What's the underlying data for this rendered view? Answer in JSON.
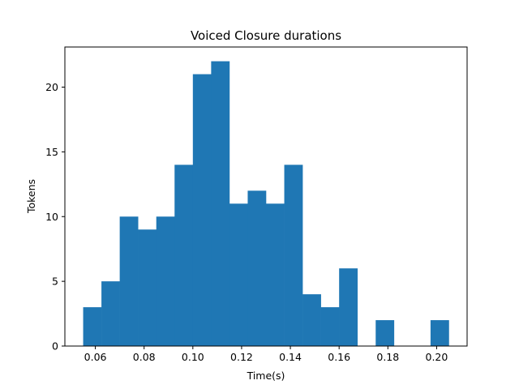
{
  "chart_data": {
    "type": "bar",
    "subtype": "histogram",
    "title": "Voiced  Closure durations",
    "xlabel": "Time(s)",
    "ylabel": "Tokens",
    "bin_edges": [
      0.055,
      0.0625,
      0.07,
      0.0775,
      0.085,
      0.0925,
      0.1,
      0.1075,
      0.115,
      0.1225,
      0.13,
      0.1375,
      0.145,
      0.1525,
      0.16,
      0.1675,
      0.175,
      0.1825,
      0.19,
      0.1975,
      0.205
    ],
    "values": [
      3,
      5,
      10,
      9,
      10,
      14,
      21,
      22,
      11,
      12,
      11,
      14,
      4,
      3,
      6,
      0,
      2,
      0,
      0,
      2
    ],
    "xlim": [
      0.0475,
      0.2125
    ],
    "ylim": [
      0,
      23.1
    ],
    "xticks": [
      0.06,
      0.08,
      0.1,
      0.12,
      0.14,
      0.16,
      0.18,
      0.2
    ],
    "xtick_labels": [
      "0.06",
      "0.08",
      "0.10",
      "0.12",
      "0.14",
      "0.16",
      "0.18",
      "0.20"
    ],
    "yticks": [
      0,
      5,
      10,
      15,
      20
    ],
    "ytick_labels": [
      "0",
      "5",
      "10",
      "15",
      "20"
    ],
    "grid": false,
    "colors": {
      "bar": "#1f77b4",
      "axes": "#000000",
      "background": "#ffffff"
    }
  }
}
